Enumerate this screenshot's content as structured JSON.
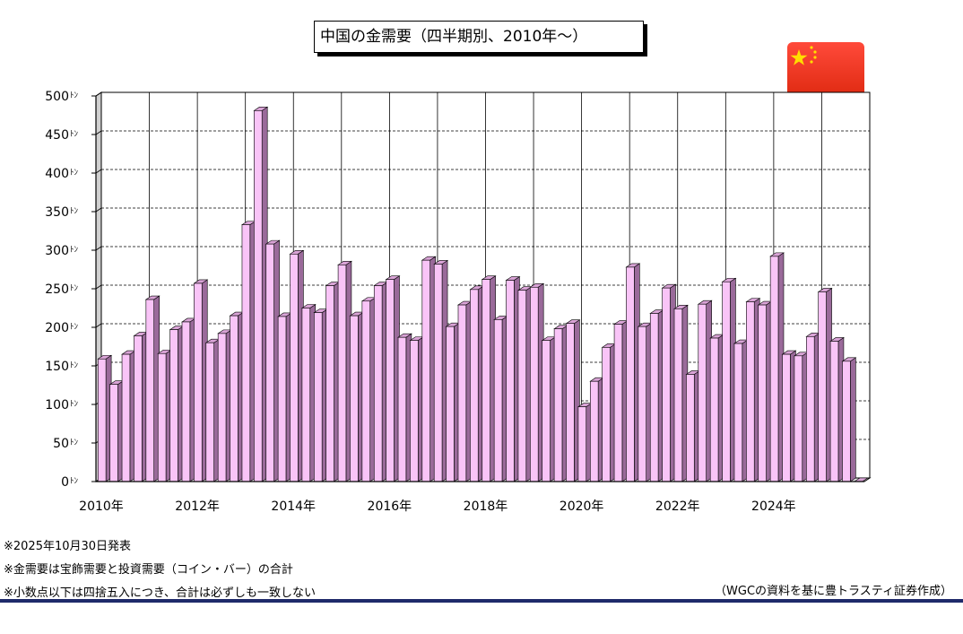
{
  "title": "中国の金需要（四半期別、2010年～）",
  "flag": {
    "name": "china-flag",
    "red": "#de2910",
    "yellow": "#ffde00"
  },
  "notes": [
    "※2025年10月30日発表",
    "※金需要は宝飾需要と投資需要（コイン・バー）の合計",
    "※小数点以下は四捨五入につき、合計は必ずしも一致しない"
  ],
  "source": "（WGCの資料を基に豊トラスティ証券作成）",
  "colors": {
    "bar_face": "#f9c4f7",
    "bar_side": "#9a6a9a",
    "bar_top": "#d9a3d6",
    "grid": "#000000",
    "footer_line": "#1f2a6a"
  },
  "chart_data": {
    "type": "bar",
    "title": "中国の金需要（四半期別、2010年～）",
    "xlabel": "",
    "ylabel": "",
    "y_unit": "ﾄﾝ",
    "ylim": [
      0,
      500
    ],
    "yticks": [
      0,
      50,
      100,
      150,
      200,
      250,
      300,
      350,
      400,
      450,
      500
    ],
    "grid": true,
    "x_tick_labels": [
      "2010年",
      "2012年",
      "2014年",
      "2016年",
      "2018年",
      "2020年",
      "2022年",
      "2024年"
    ],
    "categories": [
      "2010Q1",
      "2010Q2",
      "2010Q3",
      "2010Q4",
      "2011Q1",
      "2011Q2",
      "2011Q3",
      "2011Q4",
      "2012Q1",
      "2012Q2",
      "2012Q3",
      "2012Q4",
      "2013Q1",
      "2013Q2",
      "2013Q3",
      "2013Q4",
      "2014Q1",
      "2014Q2",
      "2014Q3",
      "2014Q4",
      "2015Q1",
      "2015Q2",
      "2015Q3",
      "2015Q4",
      "2016Q1",
      "2016Q2",
      "2016Q3",
      "2016Q4",
      "2017Q1",
      "2017Q2",
      "2017Q3",
      "2017Q4",
      "2018Q1",
      "2018Q2",
      "2018Q3",
      "2018Q4",
      "2019Q1",
      "2019Q2",
      "2019Q3",
      "2019Q4",
      "2020Q1",
      "2020Q2",
      "2020Q3",
      "2020Q4",
      "2021Q1",
      "2021Q2",
      "2021Q3",
      "2021Q4",
      "2022Q1",
      "2022Q2",
      "2022Q3",
      "2022Q4",
      "2023Q1",
      "2023Q2",
      "2023Q3",
      "2023Q4",
      "2024Q1",
      "2024Q2",
      "2024Q3",
      "2024Q4",
      "2025Q1",
      "2025Q2",
      "2025Q3",
      "2025Q4"
    ],
    "values": [
      159,
      126,
      165,
      189,
      236,
      166,
      197,
      207,
      257,
      180,
      192,
      215,
      333,
      481,
      308,
      214,
      295,
      225,
      219,
      254,
      281,
      215,
      234,
      254,
      262,
      187,
      183,
      287,
      282,
      201,
      229,
      249,
      262,
      210,
      261,
      248,
      252,
      183,
      198,
      205,
      97,
      130,
      174,
      204,
      278,
      201,
      218,
      251,
      224,
      139,
      230,
      186,
      259,
      179,
      233,
      229,
      292,
      165,
      163,
      188,
      246,
      182,
      156,
      0
    ]
  }
}
